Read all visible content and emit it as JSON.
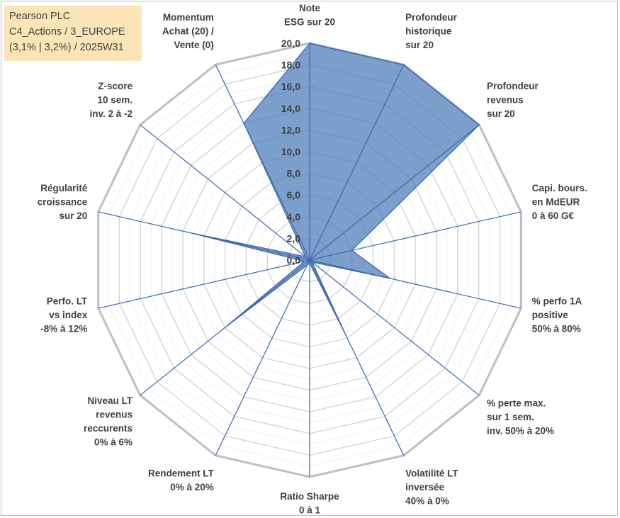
{
  "header": {
    "line1": "Pearson PLC",
    "line2": "C4_Actions / 3_EUROPE",
    "line3": "(3,1% | 3,2%) / 2025W31"
  },
  "colors": {
    "fill": "#4a7ab8",
    "stroke": "#3a67a8",
    "grid": "#d0d0d0",
    "axis": "#3a67b0",
    "title_bg": "#fbe5b6"
  },
  "chart_data": {
    "type": "radar",
    "ylim": [
      0,
      20
    ],
    "tick_step": 2,
    "tick_labels": [
      "0,0",
      "2,0",
      "4,0",
      "6,0",
      "8,0",
      "10,0",
      "12,0",
      "14,0",
      "16,0",
      "18,0",
      "20,0"
    ],
    "grid": true,
    "categories": [
      [
        "Note",
        "ESG sur 20"
      ],
      [
        "Profondeur",
        "historique",
        "sur 20"
      ],
      [
        "Profondeur",
        "revenus",
        "sur 20"
      ],
      [
        "Capi. bours.",
        "en MdEUR",
        "0 à 60 G€"
      ],
      [
        "% perfo 1A",
        "positive",
        "50% à 80%"
      ],
      [
        "% perte max.",
        "sur 1 sem.",
        "inv. 50% à 20%"
      ],
      [
        "Volatilité LT",
        "inversée",
        "40% à 0%"
      ],
      [
        "Ratio Sharpe",
        "0 à 1"
      ],
      [
        "Rendement LT",
        "0% à 20%"
      ],
      [
        "Niveau LT",
        "revenus",
        "reccurents",
        "0% à 6%"
      ],
      [
        "Perfo. LT",
        "vs index",
        "-8% à 12%"
      ],
      [
        "Régularité",
        "croissance",
        "sur 20"
      ],
      [
        "Z-score",
        "10 sem.",
        "inv. 2 à -2"
      ],
      [
        "Momentum",
        "Achat (20) /",
        "Vente (0)"
      ]
    ],
    "series": [
      {
        "values": [
          20.0,
          20.0,
          20.0,
          4.0,
          7.6,
          0.3,
          8.0,
          0.3,
          0.5,
          10.0,
          0.5,
          11.2,
          0.5,
          14.0
        ]
      }
    ]
  }
}
